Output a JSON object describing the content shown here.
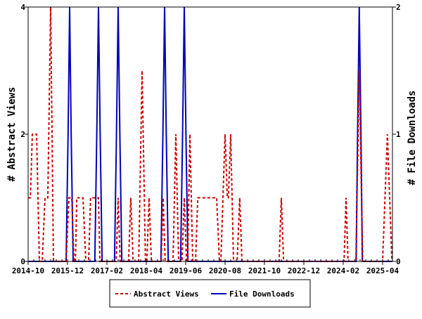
{
  "chart_data": {
    "type": "line",
    "title": "",
    "xlabel": "",
    "x_unit": "months since 2014-10",
    "xlim": [
      0,
      129.5
    ],
    "x_ticks": [
      {
        "x": 0,
        "label": "2014-10"
      },
      {
        "x": 14,
        "label": "2015-12"
      },
      {
        "x": 28,
        "label": "2017-02"
      },
      {
        "x": 42,
        "label": "2018-04"
      },
      {
        "x": 56,
        "label": "2019-06"
      },
      {
        "x": 70,
        "label": "2020-08"
      },
      {
        "x": 84,
        "label": "2021-10"
      },
      {
        "x": 98,
        "label": "2022-12"
      },
      {
        "x": 112,
        "label": "2024-02"
      },
      {
        "x": 126,
        "label": "2025-04"
      }
    ],
    "y_left": {
      "label": "# Abstract Views",
      "ylim": [
        0,
        4
      ],
      "ticks": [
        "0",
        "2",
        "4"
      ]
    },
    "y_right": {
      "label": "# File Downloads",
      "ylim": [
        0,
        2
      ],
      "ticks": [
        "0",
        "1",
        "2"
      ]
    },
    "legend_position": "bottom",
    "series": [
      {
        "name": "Abstract Views",
        "axis": "left",
        "color": "#cc0000",
        "style": "dashed",
        "points": [
          [
            0,
            1
          ],
          [
            0.8,
            1
          ],
          [
            1.5,
            2
          ],
          [
            3,
            2
          ],
          [
            4,
            0
          ],
          [
            5,
            0
          ],
          [
            6,
            1
          ],
          [
            7,
            1
          ],
          [
            8,
            4
          ],
          [
            9,
            0
          ],
          [
            13.5,
            0
          ],
          [
            14.5,
            1
          ],
          [
            15.5,
            1
          ],
          [
            16.3,
            0
          ],
          [
            16.8,
            0
          ],
          [
            17.3,
            1
          ],
          [
            19.5,
            1
          ],
          [
            20.5,
            0
          ],
          [
            21.5,
            0
          ],
          [
            22.2,
            1
          ],
          [
            24.5,
            1
          ],
          [
            25,
            1
          ],
          [
            25.5,
            0
          ],
          [
            31.3,
            0
          ],
          [
            32,
            1
          ],
          [
            32.7,
            0
          ],
          [
            35.7,
            0
          ],
          [
            36.5,
            1
          ],
          [
            37.3,
            0
          ],
          [
            39.3,
            0
          ],
          [
            40.5,
            3
          ],
          [
            41.7,
            0
          ],
          [
            42.2,
            0
          ],
          [
            43,
            1
          ],
          [
            43.8,
            0
          ],
          [
            47.3,
            0
          ],
          [
            48,
            1
          ],
          [
            48.7,
            0
          ],
          [
            51.5,
            0
          ],
          [
            52.5,
            2
          ],
          [
            53.5,
            0
          ],
          [
            54.7,
            0
          ],
          [
            55.5,
            1
          ],
          [
            56.3,
            0
          ],
          [
            56.7,
            0
          ],
          [
            57.5,
            2
          ],
          [
            58.5,
            0
          ],
          [
            59.5,
            0
          ],
          [
            60.3,
            1
          ],
          [
            61,
            1
          ],
          [
            67,
            1
          ],
          [
            68,
            0
          ],
          [
            68.5,
            0
          ],
          [
            70,
            2
          ],
          [
            70.8,
            1
          ],
          [
            71.2,
            1
          ],
          [
            72,
            2
          ],
          [
            73,
            0
          ],
          [
            74.3,
            0
          ],
          [
            75.2,
            1
          ],
          [
            76,
            0
          ],
          [
            89.2,
            0
          ],
          [
            90,
            1
          ],
          [
            90.8,
            0
          ],
          [
            112.3,
            0
          ],
          [
            113,
            1
          ],
          [
            113.7,
            0
          ],
          [
            116.5,
            0
          ],
          [
            117.7,
            3
          ],
          [
            118.9,
            0
          ],
          [
            126,
            0
          ],
          [
            127.7,
            2
          ],
          [
            129.3,
            0
          ],
          [
            129.5,
            0
          ]
        ]
      },
      {
        "name": "File Downloads",
        "axis": "right",
        "color": "#0000bb",
        "style": "solid",
        "points": [
          [
            0,
            0
          ],
          [
            13.5,
            0
          ],
          [
            14.2,
            1
          ],
          [
            14.75,
            2
          ],
          [
            15.3,
            1
          ],
          [
            16,
            0
          ],
          [
            23.7,
            0
          ],
          [
            24.4,
            1
          ],
          [
            25,
            2
          ],
          [
            25.6,
            1
          ],
          [
            26.3,
            0
          ],
          [
            30.7,
            0
          ],
          [
            31.4,
            1
          ],
          [
            32,
            2
          ],
          [
            32.6,
            1
          ],
          [
            33.3,
            0
          ],
          [
            47.2,
            0
          ],
          [
            47.9,
            1
          ],
          [
            48.5,
            2
          ],
          [
            49.1,
            1
          ],
          [
            49.8,
            0
          ],
          [
            54.2,
            0
          ],
          [
            54.9,
            1
          ],
          [
            55.5,
            2
          ],
          [
            56.1,
            1
          ],
          [
            56.8,
            0
          ],
          [
            116.6,
            0
          ],
          [
            117.1,
            1
          ],
          [
            117.7,
            2
          ],
          [
            118.3,
            1
          ],
          [
            118.8,
            0
          ],
          [
            129.5,
            0
          ]
        ]
      }
    ]
  }
}
